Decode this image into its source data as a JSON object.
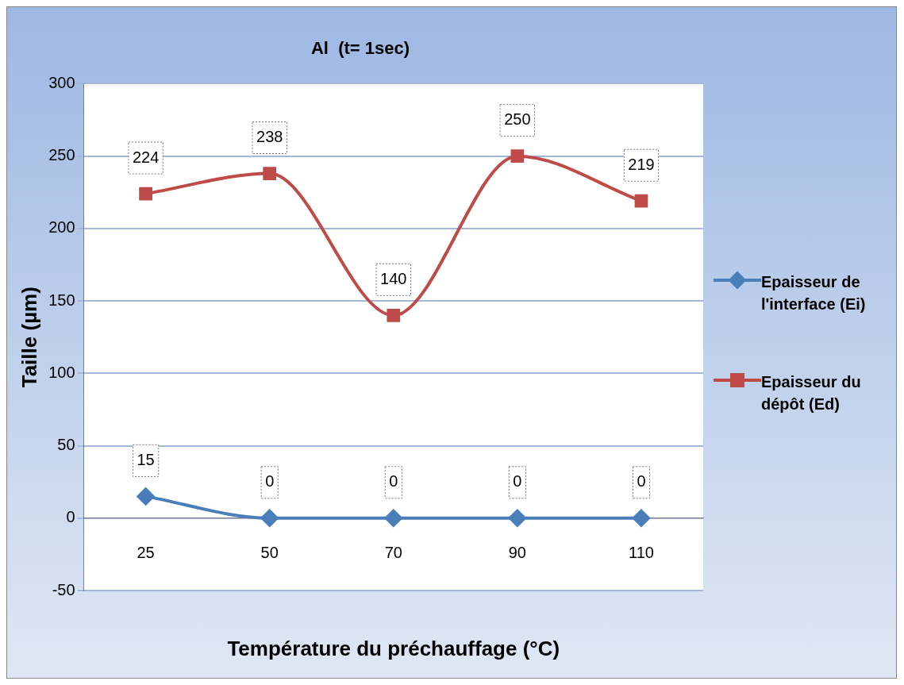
{
  "chart_data": {
    "type": "line",
    "title": "Al  (t= 1sec)",
    "xlabel": "Température du préchauffage (°C)",
    "ylabel": "Taille (µm)",
    "categories": [
      "25",
      "50",
      "70",
      "90",
      "110"
    ],
    "series": [
      {
        "name": "Epaisseur de l'interface (Ei)",
        "color": "#4a7ebb",
        "marker": "diamond",
        "values": [
          15,
          0,
          0,
          0,
          0
        ]
      },
      {
        "name": "Epaisseur du dépôt (Ed)",
        "color": "#be4b48",
        "marker": "square",
        "values": [
          224,
          238,
          140,
          250,
          219
        ]
      }
    ],
    "ylim": [
      -50,
      300
    ],
    "yticks": [
      -50,
      0,
      50,
      100,
      150,
      200,
      250,
      300
    ],
    "grid": "y",
    "legend": "right",
    "data_labels": true
  }
}
